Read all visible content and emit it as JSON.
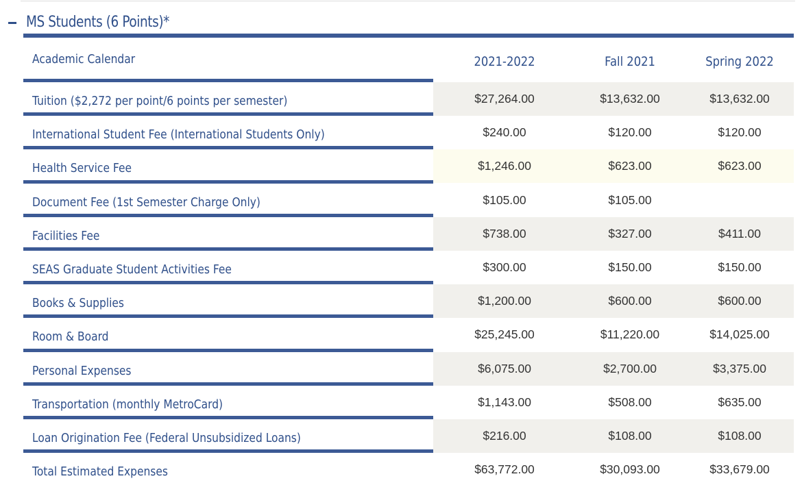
{
  "section": {
    "title": "MS Students (6 Points)*"
  },
  "columns": {
    "label": "Academic Calendar",
    "years": [
      "2021-2022",
      "Fall 2021",
      "Spring 2022"
    ]
  },
  "rows": [
    {
      "label": "Tuition ($2,272 per point/6 points per semester)",
      "values": [
        "$27,264.00",
        "$13,632.00",
        "$13,632.00"
      ],
      "shade": "#f1f0ec"
    },
    {
      "label": "International Student Fee (International Students Only)",
      "values": [
        "$240.00",
        "$120.00",
        "$120.00"
      ],
      "shade": "#ffffff"
    },
    {
      "label": "Health Service Fee",
      "values": [
        "$1,246.00",
        "$623.00",
        "$623.00"
      ],
      "shade": "#fdfcee"
    },
    {
      "label": "Document Fee (1st Semester Charge Only)",
      "values": [
        "$105.00",
        "$105.00",
        ""
      ],
      "shade": "#ffffff"
    },
    {
      "label": "Facilities Fee",
      "values": [
        "$738.00",
        "$327.00",
        "$411.00"
      ],
      "shade": "#f1f0ec"
    },
    {
      "label": "SEAS Graduate Student Activities Fee",
      "values": [
        "$300.00",
        "$150.00",
        "$150.00"
      ],
      "shade": "#ffffff"
    },
    {
      "label": "Books & Supplies",
      "values": [
        "$1,200.00",
        "$600.00",
        "$600.00"
      ],
      "shade": "#f1f0ec"
    },
    {
      "label": "Room & Board",
      "values": [
        "$25,245.00",
        "$11,220.00",
        "$14,025.00"
      ],
      "shade": "#ffffff"
    },
    {
      "label": "Personal Expenses",
      "values": [
        "$6,075.00",
        "$2,700.00",
        "$3,375.00"
      ],
      "shade": "#f1f0ec"
    },
    {
      "label": "Transportation (monthly MetroCard)",
      "values": [
        "$1,143.00",
        "$508.00",
        "$635.00"
      ],
      "shade": "#ffffff"
    },
    {
      "label": "Loan Origination Fee (Federal Unsubsidized Loans)",
      "values": [
        "$216.00",
        "$108.00",
        "$108.00"
      ],
      "shade": "#f1f0ec"
    },
    {
      "label": "Total Estimated Expenses",
      "values": [
        "$63,772.00",
        "$30,093.00",
        "$33,679.00"
      ],
      "shade": "#ffffff"
    }
  ],
  "colors": {
    "accent": "#3c5a95",
    "label_text": "#2f4f8a",
    "value_text": "#333333"
  }
}
